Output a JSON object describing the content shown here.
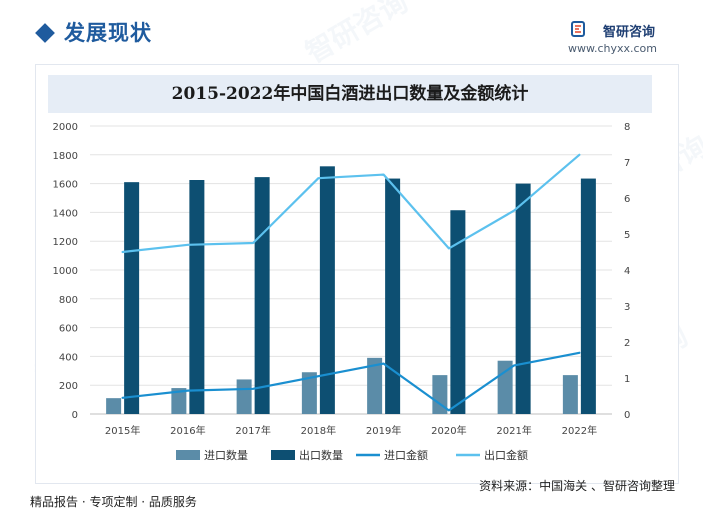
{
  "header": {
    "section_title": "发展现状",
    "brand_name": "智研咨询",
    "brand_url": "www.chyxx.com"
  },
  "footer": {
    "left_text": "精品报告 · 专项定制 · 品质服务",
    "source_text": "资料来源：中国海关 、智研咨询整理"
  },
  "watermark_text": "智研咨询",
  "colors": {
    "import_qty": "#5b8ca8",
    "export_qty": "#0d4f72",
    "import_amount": "#1a8fd0",
    "export_amount": "#5cc1ee",
    "title_band": "#e6edf6"
  },
  "chart_data": {
    "type": "bar",
    "title": "2015-2022年中国白酒进出口数量及金额统计",
    "categories": [
      "2015年",
      "2016年",
      "2017年",
      "2018年",
      "2019年",
      "2020年",
      "2021年",
      "2022年"
    ],
    "left_axis": {
      "ylim": [
        0,
        2000
      ],
      "ticks": [
        "0",
        "200",
        "400",
        "600",
        "800",
        "1000",
        "1200",
        "1400",
        "1600",
        "1800",
        "2000"
      ]
    },
    "right_axis": {
      "ylim": [
        0,
        8
      ],
      "ticks": [
        "0",
        "1",
        "2",
        "3",
        "4",
        "5",
        "6",
        "7",
        "8"
      ]
    },
    "series": [
      {
        "name": "进口数量",
        "type": "bar",
        "axis": "left",
        "values": [
          110,
          180,
          240,
          290,
          390,
          270,
          370,
          270
        ]
      },
      {
        "name": "出口数量",
        "type": "bar",
        "axis": "left",
        "values": [
          1610,
          1625,
          1645,
          1720,
          1635,
          1415,
          1600,
          1635
        ]
      },
      {
        "name": "进口金额",
        "type": "line",
        "axis": "right",
        "values": [
          0.45,
          0.65,
          0.7,
          1.05,
          1.4,
          0.1,
          1.35,
          1.7
        ]
      },
      {
        "name": "出口金额",
        "type": "line",
        "axis": "right",
        "values": [
          4.5,
          4.7,
          4.75,
          6.55,
          6.65,
          4.6,
          5.65,
          7.2
        ]
      }
    ]
  }
}
